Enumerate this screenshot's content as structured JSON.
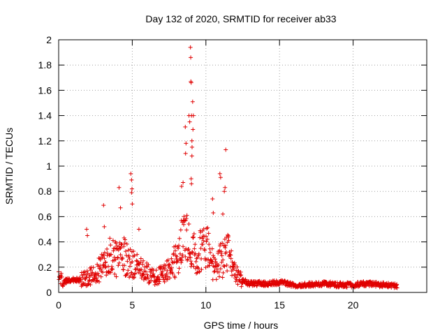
{
  "chart_data": {
    "type": "scatter",
    "title": "Day 132 of 2020, SRMTID for receiver ab33",
    "xlabel": "GPS time / hours",
    "ylabel": "SRMTID / TECUs",
    "xlim": [
      0,
      25
    ],
    "ylim": [
      0,
      2
    ],
    "x_ticks": [
      0,
      5,
      10,
      15,
      20
    ],
    "x_tick_labels": [
      "0",
      "5",
      "10",
      "15",
      "20"
    ],
    "y_ticks": [
      0,
      0.2,
      0.4,
      0.6,
      0.8,
      1,
      1.2,
      1.4,
      1.6,
      1.8,
      2
    ],
    "y_tick_labels": [
      "0",
      "0.2",
      "0.4",
      "0.6",
      "0.8",
      "1",
      "1.2",
      "1.4",
      "1.6",
      "1.8",
      "2"
    ],
    "grid": true,
    "marker": "plus",
    "series_color": "#e00000",
    "envelope": {
      "description": "approximate typical level of the point cloud vs time",
      "x": [
        0,
        0.5,
        1,
        1.5,
        2,
        2.5,
        3,
        3.5,
        4,
        4.5,
        5,
        5.5,
        6,
        6.5,
        7,
        7.5,
        8,
        8.5,
        9,
        9.5,
        10,
        10.5,
        11,
        11.5,
        12,
        12.5,
        13,
        14,
        15,
        16,
        17,
        18,
        19,
        20,
        21,
        22,
        23
      ],
      "y": [
        0.12,
        0.09,
        0.1,
        0.1,
        0.12,
        0.14,
        0.22,
        0.28,
        0.25,
        0.3,
        0.22,
        0.18,
        0.15,
        0.12,
        0.14,
        0.18,
        0.28,
        0.45,
        0.35,
        0.3,
        0.38,
        0.2,
        0.25,
        0.3,
        0.15,
        0.09,
        0.07,
        0.07,
        0.08,
        0.06,
        0.06,
        0.07,
        0.06,
        0.06,
        0.07,
        0.06,
        0.05
      ]
    },
    "outliers": [
      {
        "x": 1.9,
        "y": 0.5
      },
      {
        "x": 1.95,
        "y": 0.45
      },
      {
        "x": 3.05,
        "y": 0.69
      },
      {
        "x": 3.1,
        "y": 0.52
      },
      {
        "x": 4.1,
        "y": 0.83
      },
      {
        "x": 4.2,
        "y": 0.67
      },
      {
        "x": 4.9,
        "y": 0.94
      },
      {
        "x": 4.95,
        "y": 0.89
      },
      {
        "x": 4.98,
        "y": 0.82
      },
      {
        "x": 4.95,
        "y": 0.79
      },
      {
        "x": 5.0,
        "y": 0.7
      },
      {
        "x": 5.45,
        "y": 0.5
      },
      {
        "x": 8.35,
        "y": 0.84
      },
      {
        "x": 8.45,
        "y": 0.87
      },
      {
        "x": 8.6,
        "y": 1.31
      },
      {
        "x": 8.65,
        "y": 1.18
      },
      {
        "x": 8.62,
        "y": 1.1
      },
      {
        "x": 8.85,
        "y": 1.4
      },
      {
        "x": 8.9,
        "y": 1.35
      },
      {
        "x": 8.95,
        "y": 1.94
      },
      {
        "x": 8.97,
        "y": 1.86
      },
      {
        "x": 8.98,
        "y": 1.67
      },
      {
        "x": 9.0,
        "y": 1.66
      },
      {
        "x": 9.02,
        "y": 1.4
      },
      {
        "x": 9.05,
        "y": 1.2
      },
      {
        "x": 9.06,
        "y": 1.15
      },
      {
        "x": 9.05,
        "y": 1.08
      },
      {
        "x": 9.1,
        "y": 1.51
      },
      {
        "x": 9.12,
        "y": 1.29
      },
      {
        "x": 9.15,
        "y": 1.4
      },
      {
        "x": 9.0,
        "y": 0.9
      },
      {
        "x": 9.02,
        "y": 0.86
      },
      {
        "x": 10.45,
        "y": 0.74
      },
      {
        "x": 10.5,
        "y": 0.63
      },
      {
        "x": 10.95,
        "y": 0.94
      },
      {
        "x": 11.0,
        "y": 0.91
      },
      {
        "x": 11.35,
        "y": 1.13
      },
      {
        "x": 11.3,
        "y": 0.83
      },
      {
        "x": 11.25,
        "y": 0.8
      },
      {
        "x": 11.15,
        "y": 0.62
      }
    ]
  }
}
